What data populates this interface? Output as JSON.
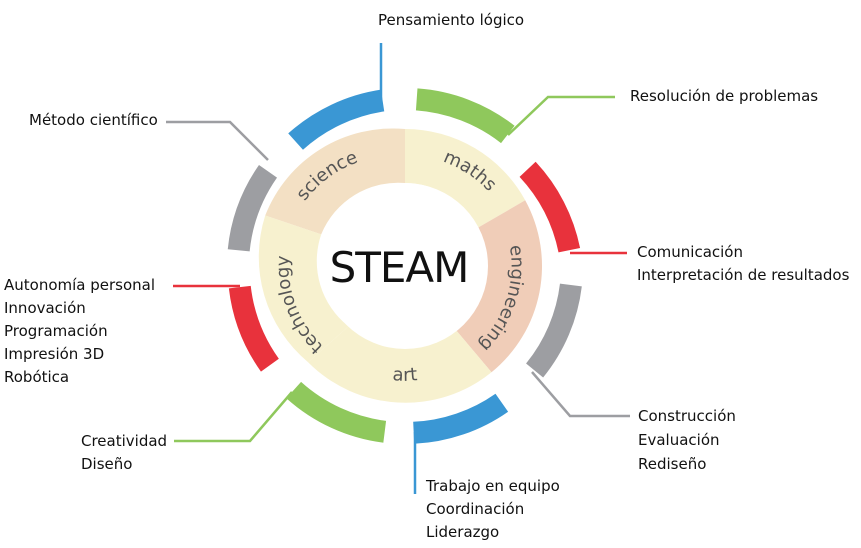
{
  "center_title": "STEAM",
  "ring": {
    "science": "science",
    "maths": "maths",
    "engineering": "engineering",
    "art": "art",
    "technology": "technology"
  },
  "colors": {
    "blue": "#3a97d4",
    "green": "#8fc85c",
    "red": "#e8323c",
    "gray": "#9d9ea2",
    "ring_light": "#f7f1cf",
    "ring_beige": "#f3e0c4",
    "ring_pink": "#f0cdb8"
  },
  "labels": {
    "top": {
      "lines": [
        "Pensamiento lógico"
      ]
    },
    "top_left": {
      "lines": [
        "Método científico"
      ]
    },
    "top_right": {
      "lines": [
        "Resolución de problemas"
      ]
    },
    "right": {
      "lines": [
        "Comunicación",
        "Interpretación de resultados"
      ]
    },
    "bottom_right": {
      "lines": [
        "Construcción",
        "Evaluación",
        "Rediseño"
      ]
    },
    "bottom": {
      "lines": [
        "Trabajo en equipo",
        "Coordinación",
        "Liderazgo"
      ]
    },
    "bottom_left": {
      "lines": [
        "Creatividad",
        "Diseño"
      ]
    },
    "left": {
      "lines": [
        "Autonomía personal",
        "Innovación",
        "Programación",
        "Impresión 3D",
        "Robótica"
      ]
    }
  }
}
